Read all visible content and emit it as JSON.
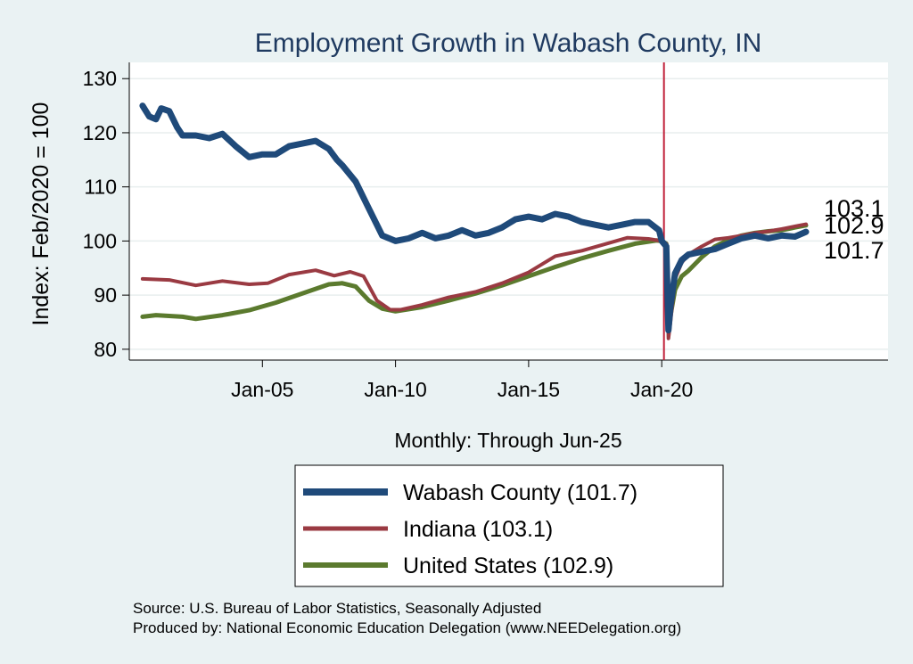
{
  "chart_data": {
    "type": "line",
    "title": "Employment Growth in Wabash  County, IN",
    "ylabel": "Index: Feb/2020 = 100",
    "xlabel": "Monthly: Through Jun-25",
    "ylim": [
      78,
      133
    ],
    "yticks": [
      80,
      90,
      100,
      110,
      120,
      130
    ],
    "xlim": [
      2000.0,
      2028.5
    ],
    "xticks": [
      {
        "value": 2005.0,
        "label": "Jan-05"
      },
      {
        "value": 2010.0,
        "label": "Jan-10"
      },
      {
        "value": 2015.0,
        "label": "Jan-15"
      },
      {
        "value": 2020.0,
        "label": "Jan-20"
      }
    ],
    "reference_line": {
      "x": 2020.083,
      "color": "#c0203a"
    },
    "grid": true,
    "series": [
      {
        "name": "United States",
        "legend_label": "United States (102.9)",
        "end_label": "102.9",
        "color": "#5b7a2e",
        "width": 5,
        "points": [
          [
            2000.5,
            86.0
          ],
          [
            2001.0,
            86.3
          ],
          [
            2002.0,
            86.0
          ],
          [
            2002.5,
            85.6
          ],
          [
            2003.5,
            86.3
          ],
          [
            2004.5,
            87.2
          ],
          [
            2005.5,
            88.6
          ],
          [
            2006.5,
            90.3
          ],
          [
            2007.5,
            92.0
          ],
          [
            2008.0,
            92.2
          ],
          [
            2008.5,
            91.6
          ],
          [
            2009.0,
            89.0
          ],
          [
            2009.5,
            87.5
          ],
          [
            2010.0,
            87.0
          ],
          [
            2011.0,
            87.8
          ],
          [
            2012.0,
            89.0
          ],
          [
            2013.0,
            90.3
          ],
          [
            2014.0,
            91.8
          ],
          [
            2015.0,
            93.5
          ],
          [
            2016.0,
            95.2
          ],
          [
            2017.0,
            96.8
          ],
          [
            2018.0,
            98.2
          ],
          [
            2019.0,
            99.5
          ],
          [
            2019.8,
            100.1
          ],
          [
            2020.0,
            100.0
          ],
          [
            2020.17,
            99.5
          ],
          [
            2020.25,
            85.0
          ],
          [
            2020.33,
            86.2
          ],
          [
            2020.5,
            91.0
          ],
          [
            2020.75,
            93.5
          ],
          [
            2021.0,
            94.5
          ],
          [
            2021.5,
            97.0
          ],
          [
            2022.0,
            99.0
          ],
          [
            2022.5,
            100.2
          ],
          [
            2023.0,
            101.0
          ],
          [
            2023.5,
            101.5
          ],
          [
            2024.0,
            101.8
          ],
          [
            2024.5,
            102.0
          ],
          [
            2025.0,
            102.5
          ],
          [
            2025.42,
            102.9
          ]
        ]
      },
      {
        "name": "Indiana",
        "legend_label": "Indiana (103.1)",
        "end_label": "103.1",
        "color": "#9a3a42",
        "width": 4,
        "points": [
          [
            2000.5,
            93.0
          ],
          [
            2001.5,
            92.8
          ],
          [
            2002.5,
            91.8
          ],
          [
            2003.5,
            92.6
          ],
          [
            2004.5,
            92.0
          ],
          [
            2005.2,
            92.2
          ],
          [
            2006.0,
            93.8
          ],
          [
            2007.0,
            94.6
          ],
          [
            2007.7,
            93.6
          ],
          [
            2008.3,
            94.3
          ],
          [
            2008.8,
            93.5
          ],
          [
            2009.3,
            89.0
          ],
          [
            2009.8,
            87.3
          ],
          [
            2010.2,
            87.3
          ],
          [
            2011.0,
            88.2
          ],
          [
            2012.0,
            89.6
          ],
          [
            2013.0,
            90.6
          ],
          [
            2014.0,
            92.2
          ],
          [
            2015.0,
            94.2
          ],
          [
            2016.0,
            97.2
          ],
          [
            2017.0,
            98.2
          ],
          [
            2018.0,
            99.6
          ],
          [
            2018.7,
            100.6
          ],
          [
            2019.5,
            100.4
          ],
          [
            2020.0,
            100.0
          ],
          [
            2020.17,
            99.5
          ],
          [
            2020.25,
            82.0
          ],
          [
            2020.33,
            85.0
          ],
          [
            2020.5,
            93.0
          ],
          [
            2020.75,
            96.0
          ],
          [
            2021.0,
            97.5
          ],
          [
            2021.5,
            99.0
          ],
          [
            2022.0,
            100.3
          ],
          [
            2022.5,
            100.6
          ],
          [
            2023.0,
            101.0
          ],
          [
            2023.5,
            101.5
          ],
          [
            2024.0,
            101.8
          ],
          [
            2024.5,
            102.2
          ],
          [
            2025.0,
            102.7
          ],
          [
            2025.42,
            103.1
          ]
        ]
      },
      {
        "name": "Wabash  County",
        "legend_label": "Wabash  County (101.7)",
        "end_label": "101.7",
        "color": "#1f4a7a",
        "width": 7,
        "points": [
          [
            2000.5,
            125.0
          ],
          [
            2000.75,
            123.0
          ],
          [
            2001.0,
            122.5
          ],
          [
            2001.2,
            124.5
          ],
          [
            2001.5,
            124.0
          ],
          [
            2001.8,
            121.0
          ],
          [
            2002.0,
            119.5
          ],
          [
            2002.5,
            119.5
          ],
          [
            2003.0,
            119.0
          ],
          [
            2003.5,
            119.8
          ],
          [
            2004.0,
            117.5
          ],
          [
            2004.5,
            115.5
          ],
          [
            2005.0,
            116.0
          ],
          [
            2005.5,
            116.0
          ],
          [
            2006.0,
            117.5
          ],
          [
            2006.5,
            118.0
          ],
          [
            2007.0,
            118.5
          ],
          [
            2007.5,
            117.0
          ],
          [
            2007.8,
            115.0
          ],
          [
            2008.0,
            114.0
          ],
          [
            2008.5,
            111.0
          ],
          [
            2009.0,
            106.0
          ],
          [
            2009.5,
            101.0
          ],
          [
            2010.0,
            100.0
          ],
          [
            2010.5,
            100.5
          ],
          [
            2011.0,
            101.5
          ],
          [
            2011.5,
            100.5
          ],
          [
            2012.0,
            101.0
          ],
          [
            2012.5,
            102.0
          ],
          [
            2013.0,
            101.0
          ],
          [
            2013.5,
            101.5
          ],
          [
            2014.0,
            102.5
          ],
          [
            2014.5,
            104.0
          ],
          [
            2015.0,
            104.5
          ],
          [
            2015.5,
            104.0
          ],
          [
            2016.0,
            105.0
          ],
          [
            2016.5,
            104.5
          ],
          [
            2017.0,
            103.5
          ],
          [
            2017.5,
            103.0
          ],
          [
            2018.0,
            102.5
          ],
          [
            2018.5,
            103.0
          ],
          [
            2019.0,
            103.5
          ],
          [
            2019.5,
            103.5
          ],
          [
            2019.9,
            102.0
          ],
          [
            2020.0,
            100.0
          ],
          [
            2020.17,
            99.0
          ],
          [
            2020.25,
            83.5
          ],
          [
            2020.33,
            88.0
          ],
          [
            2020.5,
            94.0
          ],
          [
            2020.75,
            96.5
          ],
          [
            2021.0,
            97.5
          ],
          [
            2021.5,
            98.0
          ],
          [
            2022.0,
            98.5
          ],
          [
            2022.5,
            99.5
          ],
          [
            2023.0,
            100.5
          ],
          [
            2023.5,
            101.0
          ],
          [
            2024.0,
            100.5
          ],
          [
            2024.5,
            101.0
          ],
          [
            2025.0,
            100.8
          ],
          [
            2025.42,
            101.7
          ]
        ]
      }
    ],
    "legend_order": [
      "Wabash  County",
      "Indiana",
      "United States"
    ]
  },
  "footer": {
    "source": "Source: U.S. Bureau of Labor Statistics, Seasonally Adjusted",
    "produced_by": "Produced by: National Economic Education Delegation (www.NEEDelegation.org)"
  }
}
